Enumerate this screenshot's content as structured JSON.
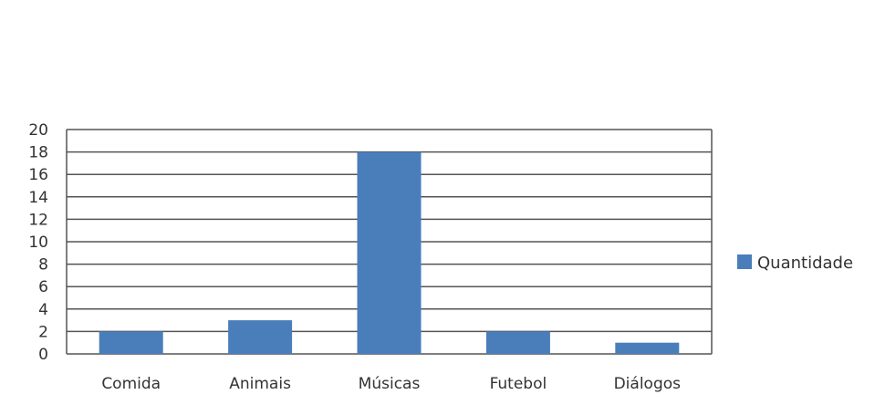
{
  "chart_data": {
    "type": "bar",
    "categories": [
      "Comida",
      "Animais",
      "Músicas",
      "Futebol",
      "Diálogos"
    ],
    "series": [
      {
        "name": "Quantidade",
        "values": [
          2,
          3,
          18,
          2,
          1
        ],
        "color": "#4a7ebb"
      }
    ],
    "ylim": [
      0,
      20
    ],
    "yticks": [
      0,
      2,
      4,
      6,
      8,
      10,
      12,
      14,
      16,
      18,
      20
    ],
    "grid": true,
    "legend": "right",
    "title": "",
    "xlabel": "",
    "ylabel": ""
  }
}
